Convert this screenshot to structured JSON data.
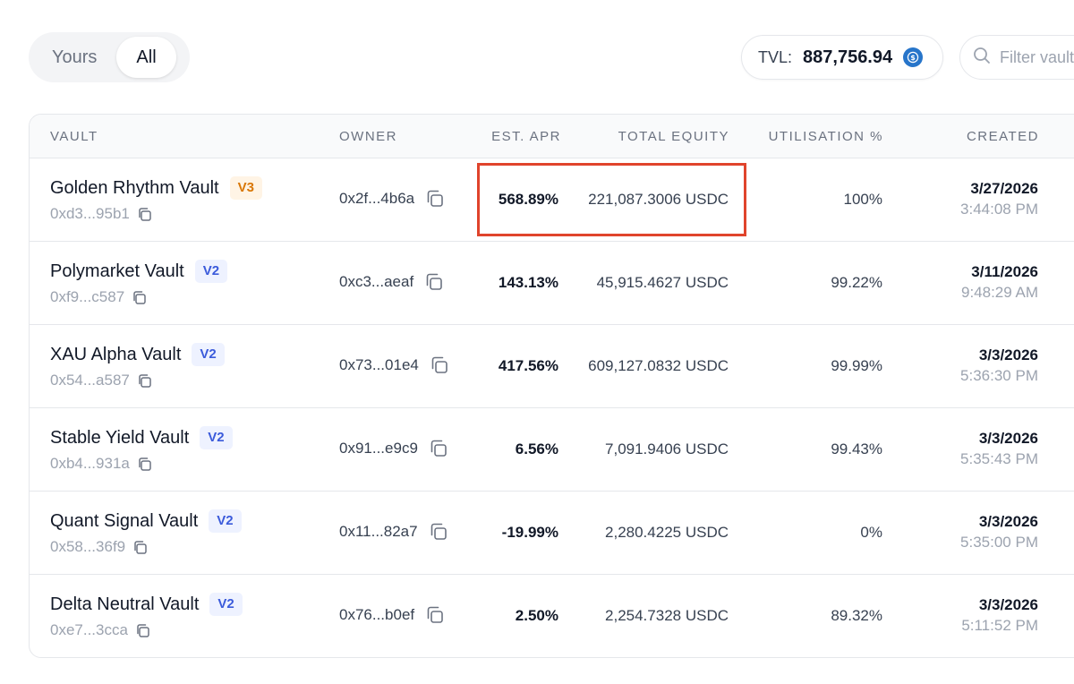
{
  "toggle": {
    "yours_label": "Yours",
    "all_label": "All",
    "active": "All"
  },
  "tvl": {
    "label": "TVL:",
    "value": "887,756.94",
    "icon": "usdc-coin-icon"
  },
  "filter": {
    "placeholder": "Filter vaults"
  },
  "table": {
    "columns": {
      "vault": "VAULT",
      "owner": "OWNER",
      "apr": "EST. APR",
      "equity": "TOTAL EQUITY",
      "utilisation": "UTILISATION %",
      "created": "CREATED"
    },
    "rows": [
      {
        "name": "Golden Rhythm Vault",
        "version": "V3",
        "address": "0xd3...95b1",
        "owner": "0x2f...4b6a",
        "apr": "568.89%",
        "equity": "221,087.3006 USDC",
        "utilisation": "100%",
        "date": "3/27/2026",
        "time": "3:44:08 PM"
      },
      {
        "name": "Polymarket Vault",
        "version": "V2",
        "address": "0xf9...c587",
        "owner": "0xc3...aeaf",
        "apr": "143.13%",
        "equity": "45,915.4627 USDC",
        "utilisation": "99.22%",
        "date": "3/11/2026",
        "time": "9:48:29 AM"
      },
      {
        "name": "XAU Alpha Vault",
        "version": "V2",
        "address": "0x54...a587",
        "owner": "0x73...01e4",
        "apr": "417.56%",
        "equity": "609,127.0832 USDC",
        "utilisation": "99.99%",
        "date": "3/3/2026",
        "time": "5:36:30 PM"
      },
      {
        "name": "Stable Yield Vault",
        "version": "V2",
        "address": "0xb4...931a",
        "owner": "0x91...e9c9",
        "apr": "6.56%",
        "equity": "7,091.9406 USDC",
        "utilisation": "99.43%",
        "date": "3/3/2026",
        "time": "5:35:43 PM"
      },
      {
        "name": "Quant Signal Vault",
        "version": "V2",
        "address": "0x58...36f9",
        "owner": "0x11...82a7",
        "apr": "-19.99%",
        "equity": "2,280.4225 USDC",
        "utilisation": "0%",
        "date": "3/3/2026",
        "time": "5:35:00 PM"
      },
      {
        "name": "Delta Neutral Vault",
        "version": "V2",
        "address": "0xe7...3cca",
        "owner": "0x76...b0ef",
        "apr": "2.50%",
        "equity": "2,254.7328 USDC",
        "utilisation": "89.32%",
        "date": "3/3/2026",
        "time": "5:11:52 PM"
      }
    ]
  },
  "colors": {
    "highlight": "#e0442c",
    "v2_badge": "#3b5bdb",
    "v3_badge": "#d97706",
    "usdc": "#2775ca"
  }
}
